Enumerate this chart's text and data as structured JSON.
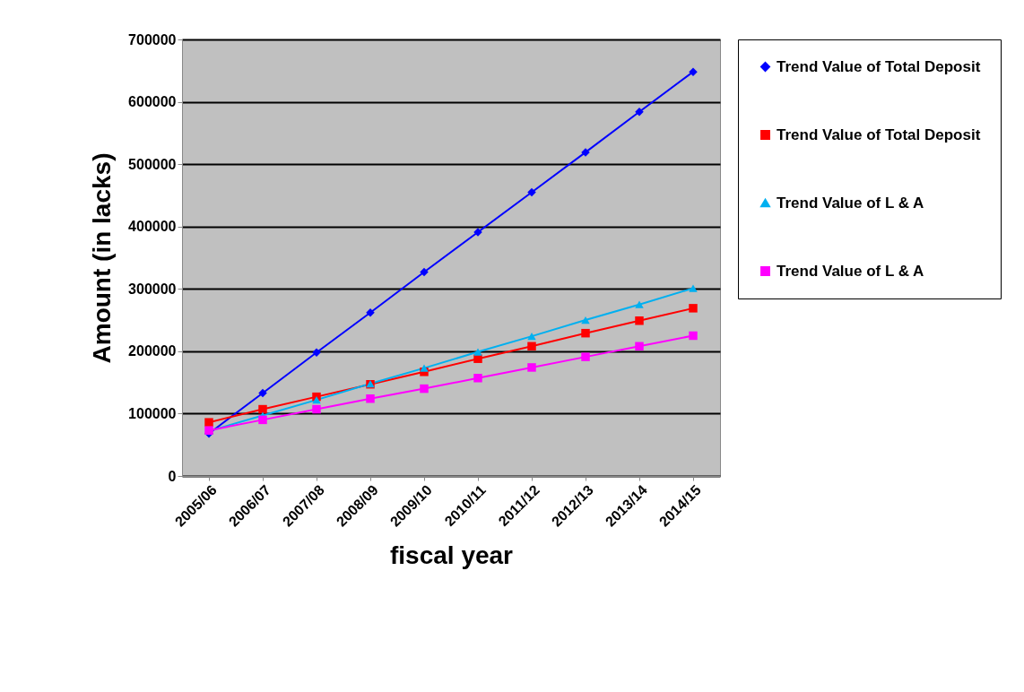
{
  "chart_data": {
    "type": "line",
    "xlabel": "fiscal year",
    "ylabel": "Amount (in lacks)",
    "categories": [
      "2005/06",
      "2006/07",
      "2007/08",
      "2008/09",
      "2009/10",
      "2010/11",
      "2011/12",
      "2012/13",
      "2013/14",
      "2014/15"
    ],
    "series": [
      {
        "name": "Trend Value of Total Deposit",
        "color": "#0000ff",
        "marker": "diamond",
        "values": [
          68000,
          133000,
          198000,
          262000,
          327000,
          391000,
          455000,
          519000,
          584000,
          648000
        ]
      },
      {
        "name": "Trend Value of Total Deposit",
        "color": "#ff0000",
        "marker": "square",
        "values": [
          86000,
          107000,
          127000,
          147000,
          167000,
          188000,
          208000,
          229000,
          249000,
          269000
        ]
      },
      {
        "name": "Trend Value of L & A",
        "color": "#00b0f0",
        "marker": "triangle",
        "values": [
          72000,
          97000,
          122000,
          148000,
          173000,
          199000,
          224000,
          250000,
          275000,
          301000
        ]
      },
      {
        "name": "Trend Value of L & A",
        "color": "#ff00ff",
        "marker": "square",
        "values": [
          73000,
          90000,
          107000,
          124000,
          140000,
          157000,
          174000,
          191000,
          208000,
          225000
        ]
      }
    ],
    "ylim": [
      0,
      700000
    ],
    "yticks": [
      0,
      100000,
      200000,
      300000,
      400000,
      500000,
      600000,
      700000
    ],
    "grid": "y",
    "legend": "right"
  }
}
